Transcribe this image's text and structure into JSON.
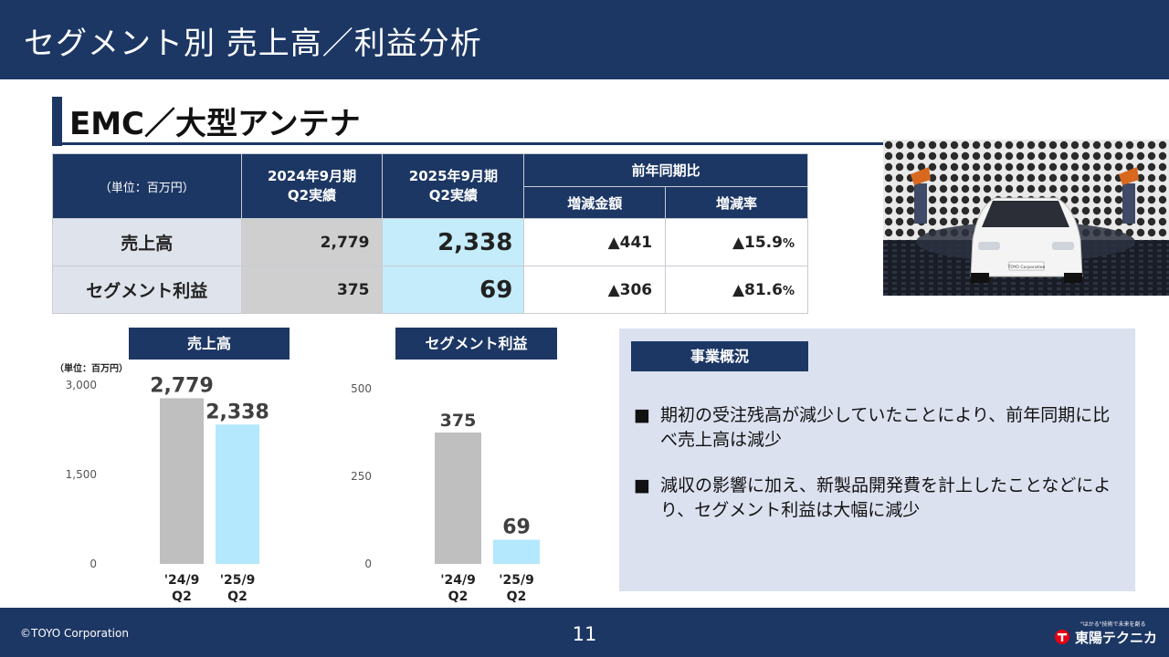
{
  "header": {
    "title": "セグメント別 売上高／利益分析"
  },
  "section": {
    "title": "EMC／大型アンテナ"
  },
  "table": {
    "unit": "（単位：百万円）",
    "col_2024": "2024年9月期\nQ2実績",
    "col_2025": "2025年9月期\nQ2実績",
    "col_yoy": "前年同期比",
    "col_diff": "増減金額",
    "col_rate": "増減率",
    "rows": [
      {
        "label": "売上高",
        "v2024": "2,779",
        "v2025": "2,338",
        "diff": "▲441",
        "rate": "▲15.9",
        "rate_unit": "%"
      },
      {
        "label": "セグメント利益",
        "v2024": "375",
        "v2025": "69",
        "diff": "▲306",
        "rate": "▲81.6",
        "rate_unit": "%"
      }
    ]
  },
  "photo": {
    "sign_text": "TOYO Corporation"
  },
  "chart_data": [
    {
      "type": "bar",
      "title": "売上高",
      "unit_label": "（単位：百万円）",
      "categories": [
        "'24/9\nQ2",
        "'25/9\nQ2"
      ],
      "values": [
        2779,
        2338
      ],
      "value_labels": [
        "2,779",
        "2,338"
      ],
      "ylim": [
        0,
        3000
      ],
      "yticks": [
        "0",
        "1,500",
        "3,000"
      ],
      "colors": [
        "#bfbfbf",
        "#b3e8fd"
      ]
    },
    {
      "type": "bar",
      "title": "セグメント利益",
      "categories": [
        "'24/9\nQ2",
        "'25/9\nQ2"
      ],
      "values": [
        375,
        69
      ],
      "value_labels": [
        "375",
        "69"
      ],
      "ylim": [
        0,
        500
      ],
      "yticks": [
        "0",
        "250",
        "500"
      ],
      "colors": [
        "#bfbfbf",
        "#b3e8fd"
      ]
    }
  ],
  "summary": {
    "title": "事業概況",
    "bullet_mark": "■",
    "bullets": [
      "期初の受注残高が減少していたことにより、前年同期に比べ売上高は減少",
      "減収の影響に加え、新製品開発費を計上したことなどにより、セグメント利益は大幅に減少"
    ]
  },
  "footer": {
    "copyright": "©TOYO Corporation",
    "page": "11",
    "logo_text": "東陽テクニカ",
    "logo_tagline": "\"はかる\"技術で未来を創る"
  },
  "colors": {
    "navy": "#1c3764",
    "bar_prev": "#bfbfbf",
    "bar_curr": "#b3e8fd"
  }
}
